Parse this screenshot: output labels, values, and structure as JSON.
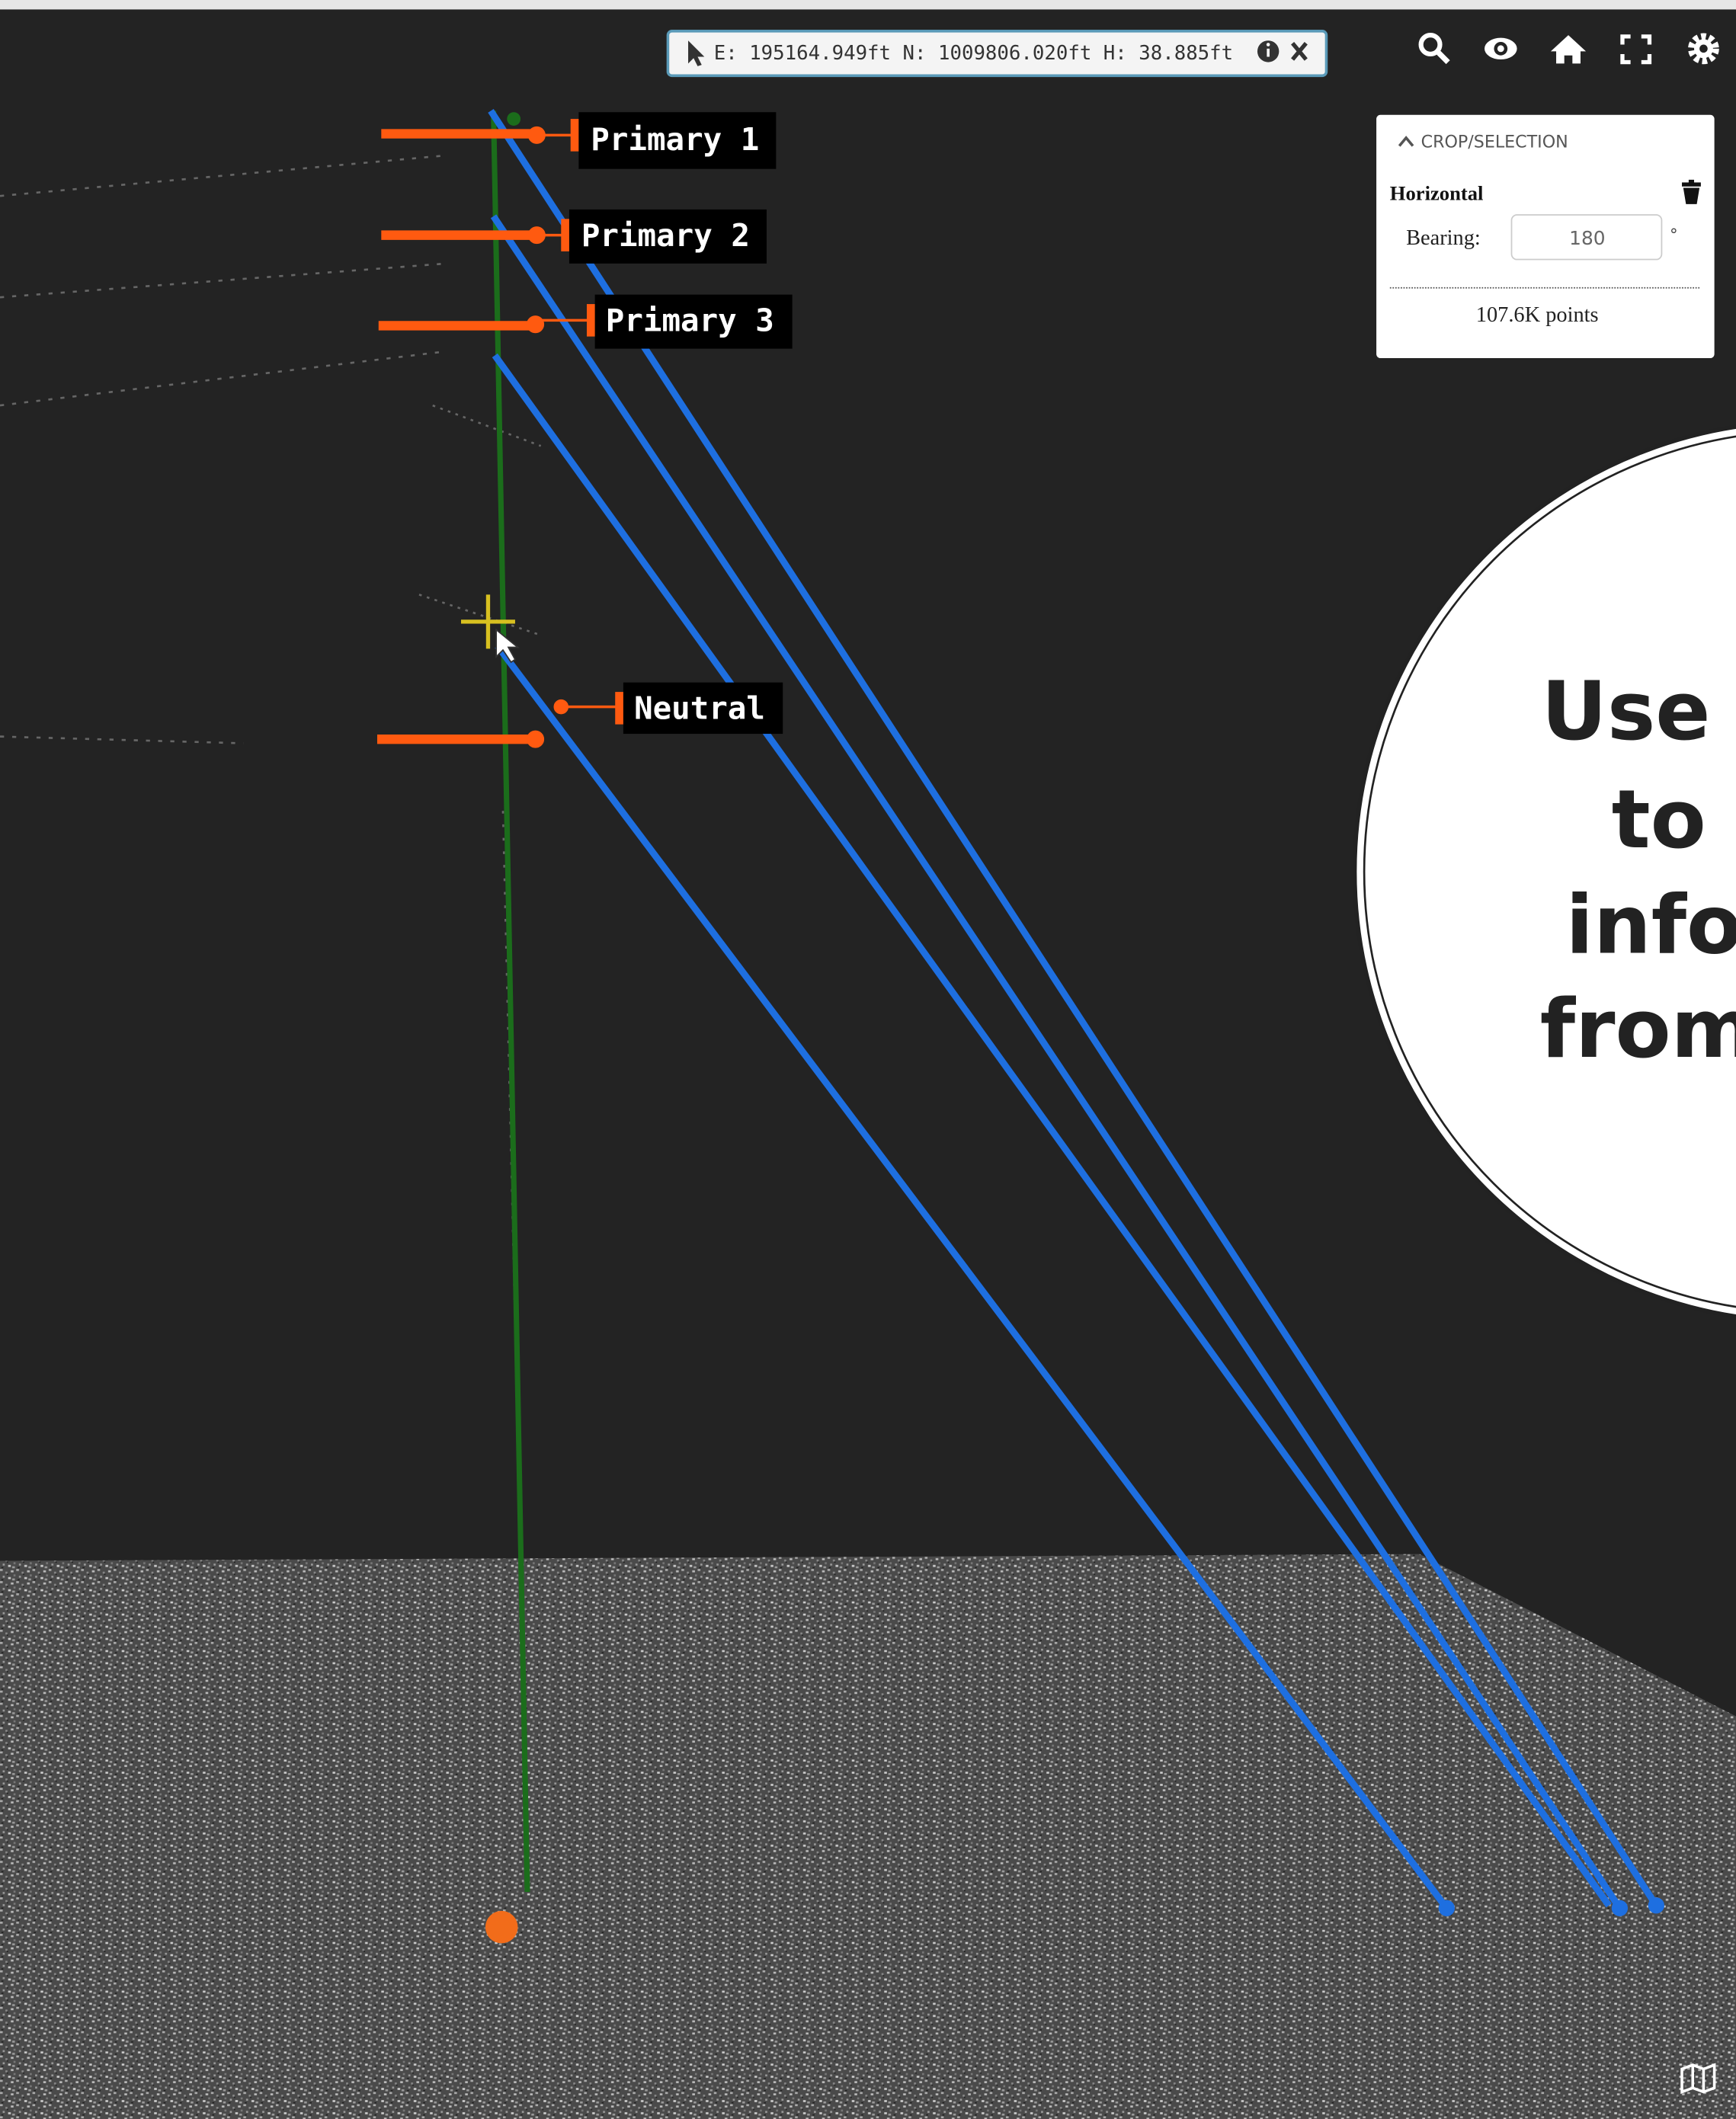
{
  "coordinate_bar": {
    "text": "E: 195164.949ft N: 1009806.020ft H: 38.885ft"
  },
  "wire_labels": [
    "Primary 1",
    "Primary 2",
    "Primary 3",
    "Neutral"
  ],
  "panel": {
    "title": "CROP/SELECTION",
    "mode": "Horizontal",
    "bearing_label": "Bearing:",
    "bearing_value": "180",
    "bearing_unit": "°",
    "points": "107.6K points"
  },
  "callout": {
    "lines": [
      "Use a",
      "to e",
      "infor",
      "from"
    ]
  }
}
